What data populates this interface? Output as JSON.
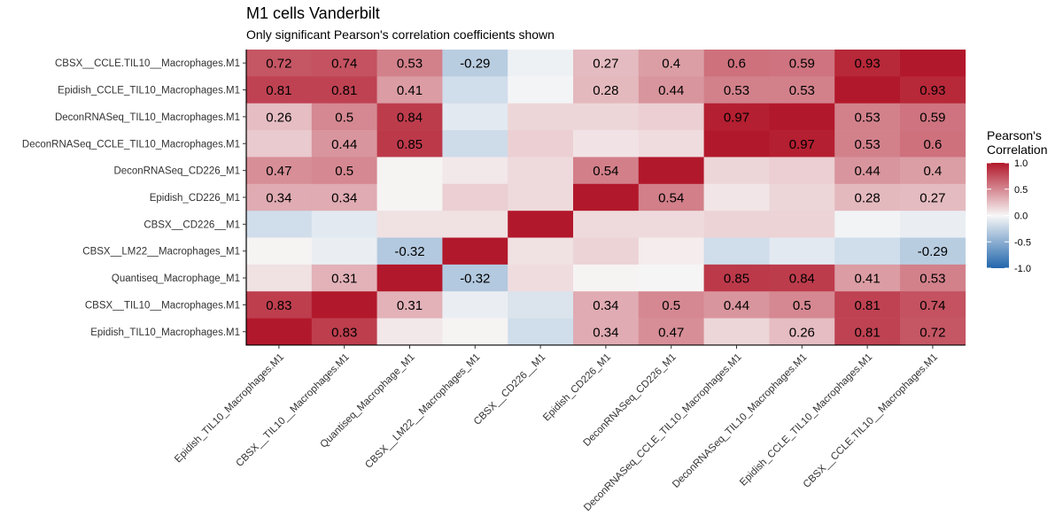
{
  "chart_data": {
    "type": "heatmap",
    "title": "M1 cells Vanderbilt",
    "subtitle": "Only significant Pearson's correlation coefficients shown",
    "x_categories": [
      "Epidish_TIL10_Macrophages.M1",
      "CBSX__TIL10__Macrophages.M1",
      "Quantiseq_Macrophage_M1",
      "CBSX__LM22__Macrophages_M1",
      "CBSX__CD226__M1",
      "Epidish_CD226_M1",
      "DeconRNASeq_CD226_M1",
      "DeconRNASeq_CCLE_TIL10_Macrophages.M1",
      "DeconRNASeq_TIL10_Macrophages.M1",
      "Epidish_CCLE_TIL10_Macrophages.M1",
      "CBSX__CCLE.TIL10__Macrophages.M1"
    ],
    "y_categories": [
      "CBSX__CCLE.TIL10__Macrophages.M1",
      "Epidish_CCLE_TIL10_Macrophages.M1",
      "DeconRNASeq_TIL10_Macrophages.M1",
      "DeconRNASeq_CCLE_TIL10_Macrophages.M1",
      "DeconRNASeq_CD226_M1",
      "Epidish_CD226_M1",
      "CBSX__CD226__M1",
      "CBSX__LM22__Macrophages_M1",
      "Quantiseq_Macrophage_M1",
      "CBSX__TIL10__Macrophages.M1",
      "Epidish_TIL10_Macrophages.M1"
    ],
    "values": [
      [
        0.72,
        0.74,
        0.53,
        -0.29,
        -0.04,
        0.27,
        0.4,
        0.6,
        0.59,
        0.93,
        1.0
      ],
      [
        0.81,
        0.81,
        0.41,
        -0.18,
        -0.02,
        0.28,
        0.44,
        0.53,
        0.53,
        1.0,
        0.93
      ],
      [
        0.26,
        0.5,
        0.84,
        -0.1,
        0.15,
        0.15,
        0.18,
        0.97,
        1.0,
        0.53,
        0.59
      ],
      [
        0.2,
        0.44,
        0.85,
        -0.19,
        0.18,
        0.09,
        0.12,
        1.0,
        0.97,
        0.53,
        0.6
      ],
      [
        0.47,
        0.5,
        0.02,
        0.07,
        0.13,
        0.54,
        1.0,
        0.15,
        0.18,
        0.44,
        0.4
      ],
      [
        0.34,
        0.34,
        0.02,
        0.18,
        0.13,
        1.0,
        0.54,
        0.08,
        0.15,
        0.28,
        0.27
      ],
      [
        -0.18,
        -0.1,
        0.1,
        0.1,
        1.0,
        0.13,
        0.13,
        0.16,
        0.16,
        -0.03,
        -0.06
      ],
      [
        0.02,
        -0.06,
        -0.32,
        1.0,
        0.1,
        0.16,
        0.05,
        -0.18,
        -0.1,
        -0.18,
        -0.29
      ],
      [
        0.1,
        0.31,
        1.0,
        -0.32,
        0.12,
        0.02,
        0.01,
        0.85,
        0.84,
        0.41,
        0.53
      ],
      [
        0.83,
        1.0,
        0.31,
        -0.06,
        -0.13,
        0.34,
        0.5,
        0.44,
        0.5,
        0.81,
        0.74
      ],
      [
        1.0,
        0.83,
        0.07,
        0.02,
        -0.18,
        0.34,
        0.47,
        0.15,
        0.26,
        0.81,
        0.72
      ]
    ],
    "labels": [
      [
        "0.72",
        "0.74",
        "0.53",
        "-0.29",
        "",
        "0.27",
        "0.4",
        "0.6",
        "0.59",
        "0.93",
        ""
      ],
      [
        "0.81",
        "0.81",
        "0.41",
        "",
        "",
        "0.28",
        "0.44",
        "0.53",
        "0.53",
        "",
        "0.93"
      ],
      [
        "0.26",
        "0.5",
        "0.84",
        "",
        "",
        "",
        "",
        "0.97",
        "",
        "0.53",
        "0.59"
      ],
      [
        "",
        "0.44",
        "0.85",
        "",
        "",
        "",
        "",
        "",
        "0.97",
        "0.53",
        "0.6"
      ],
      [
        "0.47",
        "0.5",
        "",
        "",
        "",
        "0.54",
        "",
        "",
        "",
        "0.44",
        "0.4"
      ],
      [
        "0.34",
        "0.34",
        "",
        "",
        "",
        "",
        "0.54",
        "",
        "",
        "0.28",
        "0.27"
      ],
      [
        "",
        "",
        "",
        "",
        "",
        "",
        "",
        "",
        "",
        "",
        ""
      ],
      [
        "",
        "",
        "-0.32",
        "",
        "",
        "",
        "",
        "",
        "",
        "",
        "-0.29"
      ],
      [
        "",
        "0.31",
        "",
        "-0.32",
        "",
        "",
        "",
        "0.85",
        "0.84",
        "0.41",
        "0.53"
      ],
      [
        "0.83",
        "",
        "0.31",
        "",
        "",
        "0.34",
        "0.5",
        "0.44",
        "0.5",
        "0.81",
        "0.74"
      ],
      [
        "",
        "0.83",
        "",
        "",
        "",
        "0.34",
        "0.47",
        "",
        "0.26",
        "0.81",
        "0.72"
      ]
    ],
    "legend": {
      "title_lines": [
        "Pearson's",
        "Correlation"
      ],
      "ticks": [
        1.0,
        0.5,
        0.0,
        -0.5,
        -1.0
      ],
      "tick_labels": [
        "1.0",
        "0.5",
        "0.0",
        "-0.5",
        "-1.0"
      ],
      "placement": "right"
    },
    "color_scale": {
      "low": "#2166ac",
      "mid": "#f7f7f7",
      "high": "#b2182b",
      "domain": [
        -1,
        1
      ]
    },
    "grid": false
  }
}
